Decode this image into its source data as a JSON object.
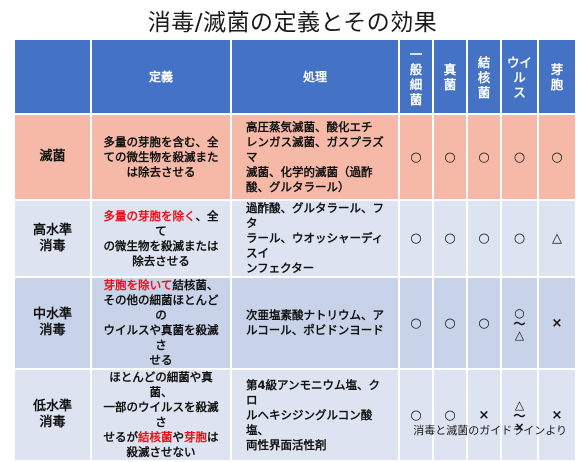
{
  "title": "消毒/滅菌の定義とその効果",
  "header": {
    "definition": "定義",
    "process": "処理",
    "cols": [
      [
        "一",
        "般",
        "細",
        "菌"
      ],
      [
        "真",
        "菌"
      ],
      [
        "結",
        "核",
        "菌"
      ],
      [
        "ウイ",
        "ル",
        "ス"
      ],
      [
        "芽",
        "胞"
      ]
    ]
  },
  "rows": [
    {
      "head": [
        "滅菌"
      ],
      "definition": [
        [
          {
            "t": "多量の芽胞を含む、全"
          }
        ],
        [
          {
            "t": "ての微生物を殺滅また"
          }
        ],
        [
          {
            "t": "は除去させる"
          }
        ]
      ],
      "process": [
        "高圧蒸気滅菌、酸化エチ",
        "レンガス滅菌、ガスプラズマ",
        "滅菌、化学的滅菌（過酢",
        "酸、グルタラール）"
      ],
      "marks": [
        [
          "○"
        ],
        [
          "○"
        ],
        [
          "○"
        ],
        [
          "○"
        ],
        [
          "○"
        ]
      ]
    },
    {
      "head": [
        "高水準",
        "消毒"
      ],
      "definition": [
        [
          {
            "t": "多量の芽胞を除く",
            "red": true
          },
          {
            "t": "、全て"
          }
        ],
        [
          {
            "t": "の微生物を殺滅または"
          }
        ],
        [
          {
            "t": "除去させる"
          }
        ]
      ],
      "process": [
        "過酢酸、グルタラール、フタ",
        "ラール、ウオッシャーディスイ",
        "ンフェクター"
      ],
      "marks": [
        [
          "○"
        ],
        [
          "○"
        ],
        [
          "○"
        ],
        [
          "○"
        ],
        [
          "△"
        ]
      ]
    },
    {
      "head": [
        "中水準",
        "消毒"
      ],
      "definition": [
        [
          {
            "t": "芽胞を除いて",
            "red": true
          },
          {
            "t": "結核菌、"
          }
        ],
        [
          {
            "t": "その他の細菌ほとんどの"
          }
        ],
        [
          {
            "t": "ウイルスや真菌を殺滅さ"
          }
        ],
        [
          {
            "t": "せる"
          }
        ]
      ],
      "process": [
        "次亜塩素酸ナトリウム、ア",
        "ルコール、ポビドンヨード"
      ],
      "marks": [
        [
          "○"
        ],
        [
          "○"
        ],
        [
          "○"
        ],
        [
          "○",
          "～",
          "△"
        ],
        [
          "×"
        ]
      ]
    },
    {
      "head": [
        "低水準",
        "消毒"
      ],
      "definition": [
        [
          {
            "t": "ほとんどの細菌や真菌、"
          }
        ],
        [
          {
            "t": "一部のウイルスを殺滅さ"
          }
        ],
        [
          {
            "t": "せるが"
          },
          {
            "t": "結核菌",
            "red": true
          },
          {
            "t": "や"
          },
          {
            "t": "芽胞",
            "red": true
          },
          {
            "t": "は"
          }
        ],
        [
          {
            "t": "殺滅させない"
          }
        ]
      ],
      "process": [
        "第4級アンモニウム塩、クロ",
        "ルヘキシジングルコン酸塩、",
        "両性界面活性剤"
      ],
      "marks": [
        [
          "○"
        ],
        [
          "○"
        ],
        [
          "×"
        ],
        [
          "△",
          "～",
          "×"
        ],
        [
          "×"
        ]
      ]
    }
  ],
  "source": "消毒と滅菌のガイドラインより"
}
